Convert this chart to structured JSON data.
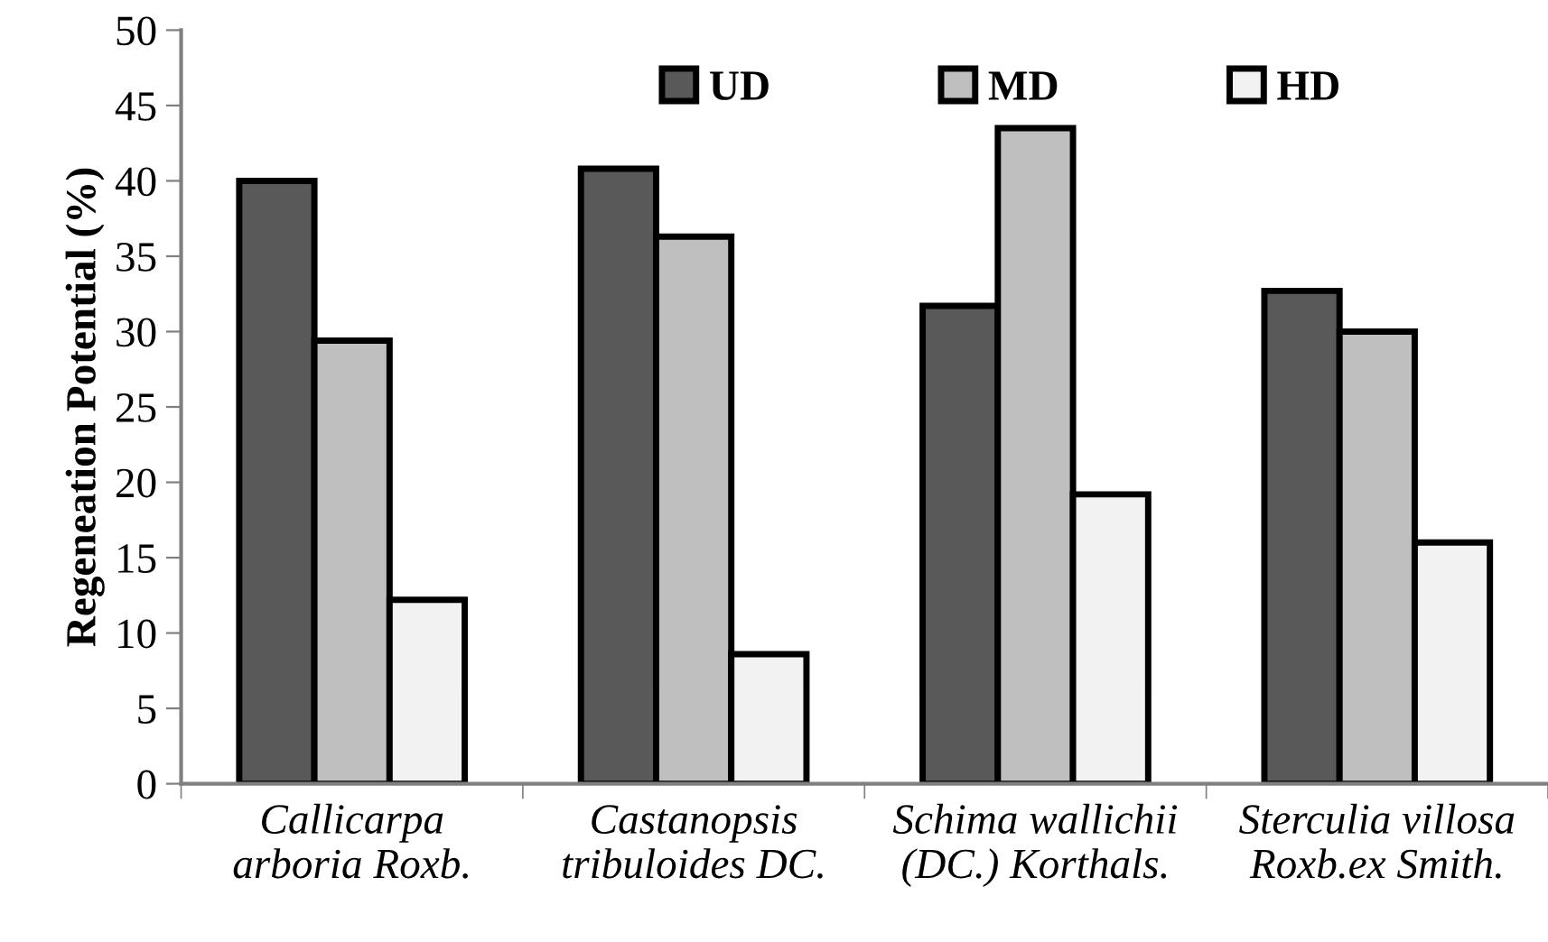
{
  "chart_data": {
    "type": "bar",
    "ylabel": "Regeneation Potential (%)",
    "categories": [
      "Callicarpa\narboria Roxb.",
      "Castanopsis\ntribuloides DC.",
      "Schima wallichii\n(DC.) Korthals.",
      "Sterculia villosa\nRoxb.ex Smith."
    ],
    "series": [
      {
        "name": "UD",
        "color": "#595959",
        "values": [
          40.0,
          40.8,
          31.7,
          32.7
        ]
      },
      {
        "name": "MD",
        "color": "#bfbfbf",
        "values": [
          29.4,
          36.3,
          43.5,
          30.0
        ]
      },
      {
        "name": "HD",
        "color": "#f2f2f2",
        "values": [
          12.2,
          8.6,
          19.2,
          16.0
        ]
      }
    ],
    "ylim": [
      0,
      50
    ],
    "yticks": [
      0,
      5,
      10,
      15,
      20,
      25,
      30,
      35,
      40,
      45,
      50
    ],
    "grid": false,
    "legend": "top"
  }
}
